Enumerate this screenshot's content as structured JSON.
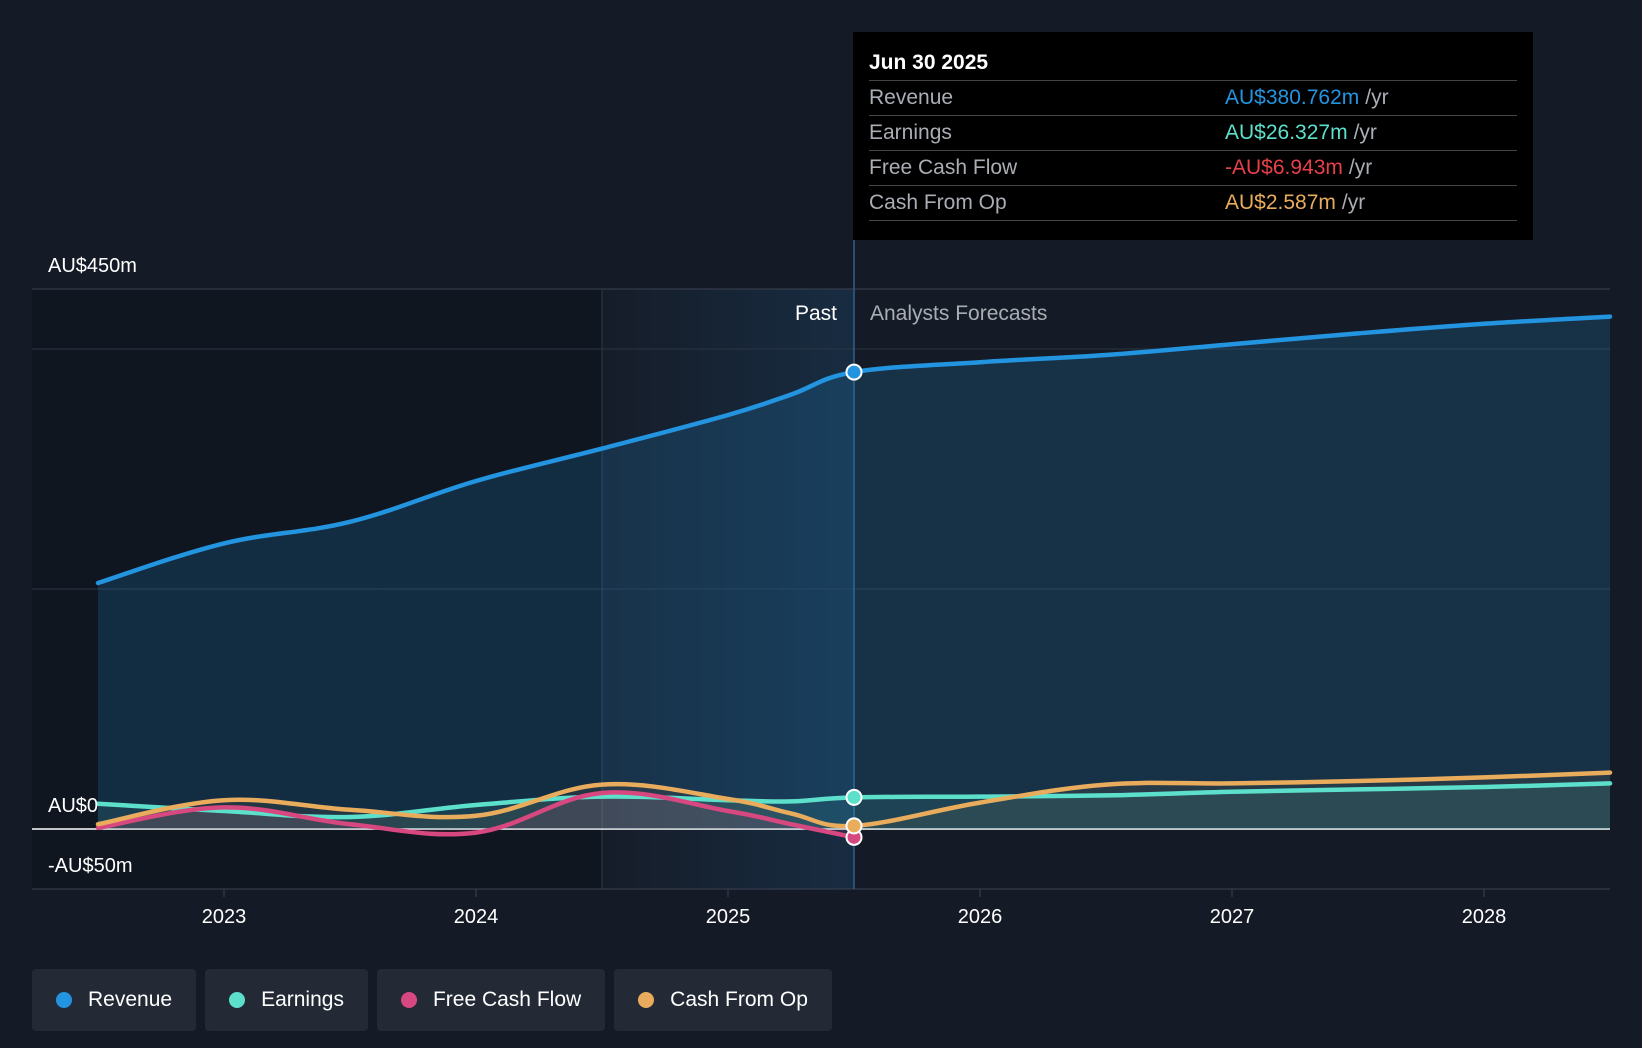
{
  "chart_data": {
    "type": "line",
    "x_axis": {
      "ticks": [
        "2023",
        "2024",
        "2025",
        "2026",
        "2027",
        "2028"
      ],
      "range": [
        2022.5,
        2028.5
      ]
    },
    "y_axis": {
      "labels": [
        "AU$450m",
        "AU$0",
        "-AU$50m"
      ],
      "range": [
        -50,
        450
      ],
      "unit": "AU$m"
    },
    "divider": {
      "past_label": "Past",
      "forecast_label": "Analysts Forecasts",
      "x": 2025.5
    },
    "series": [
      {
        "name": "Revenue",
        "color": "#2394df",
        "points": [
          [
            2022.5,
            205
          ],
          [
            2023,
            238
          ],
          [
            2023.5,
            256
          ],
          [
            2024,
            290
          ],
          [
            2024.5,
            317
          ],
          [
            2025,
            345
          ],
          [
            2025.25,
            362
          ],
          [
            2025.5,
            380.762
          ],
          [
            2026,
            389
          ],
          [
            2026.5,
            395
          ],
          [
            2027,
            404
          ],
          [
            2027.5,
            413
          ],
          [
            2028,
            421
          ],
          [
            2028.5,
            427
          ]
        ]
      },
      {
        "name": "Earnings",
        "color": "#5ce0cc",
        "points": [
          [
            2022.5,
            21
          ],
          [
            2023,
            15
          ],
          [
            2023.5,
            10
          ],
          [
            2024,
            20
          ],
          [
            2024.5,
            27
          ],
          [
            2025,
            24
          ],
          [
            2025.25,
            23
          ],
          [
            2025.5,
            26.327
          ],
          [
            2026,
            27
          ],
          [
            2026.5,
            28
          ],
          [
            2027,
            31
          ],
          [
            2027.5,
            33
          ],
          [
            2028,
            35
          ],
          [
            2028.5,
            38
          ]
        ]
      },
      {
        "name": "Free Cash Flow",
        "color": "#d6487f",
        "points": [
          [
            2022.5,
            1
          ],
          [
            2023,
            18
          ],
          [
            2023.5,
            4
          ],
          [
            2024,
            -3
          ],
          [
            2024.5,
            30
          ],
          [
            2025,
            15
          ],
          [
            2025.25,
            4
          ],
          [
            2025.5,
            -6.943
          ]
        ]
      },
      {
        "name": "Cash From Op",
        "color": "#e9ac5d",
        "points": [
          [
            2022.5,
            4
          ],
          [
            2023,
            24
          ],
          [
            2023.5,
            16
          ],
          [
            2024,
            11
          ],
          [
            2024.5,
            37
          ],
          [
            2025,
            25
          ],
          [
            2025.25,
            13
          ],
          [
            2025.5,
            2.587
          ],
          [
            2026,
            22
          ],
          [
            2026.5,
            37
          ],
          [
            2027,
            38
          ],
          [
            2027.5,
            40
          ],
          [
            2028,
            43
          ],
          [
            2028.5,
            47
          ]
        ]
      }
    ],
    "highlight_x": 2025.5
  },
  "tooltip": {
    "date": "Jun 30 2025",
    "unit": "/yr",
    "rows": [
      {
        "name": "Revenue",
        "value": "AU$380.762m",
        "color": "#2394df"
      },
      {
        "name": "Earnings",
        "value": "AU$26.327m",
        "color": "#5ce0cc"
      },
      {
        "name": "Free Cash Flow",
        "value": "-AU$6.943m",
        "color": "#e8404a"
      },
      {
        "name": "Cash From Op",
        "value": "AU$2.587m",
        "color": "#e9ac5d"
      }
    ]
  },
  "legend": [
    {
      "label": "Revenue",
      "color": "#2394df"
    },
    {
      "label": "Earnings",
      "color": "#5ce0cc"
    },
    {
      "label": "Free Cash Flow",
      "color": "#d6487f"
    },
    {
      "label": "Cash From Op",
      "color": "#e9ac5d"
    }
  ]
}
